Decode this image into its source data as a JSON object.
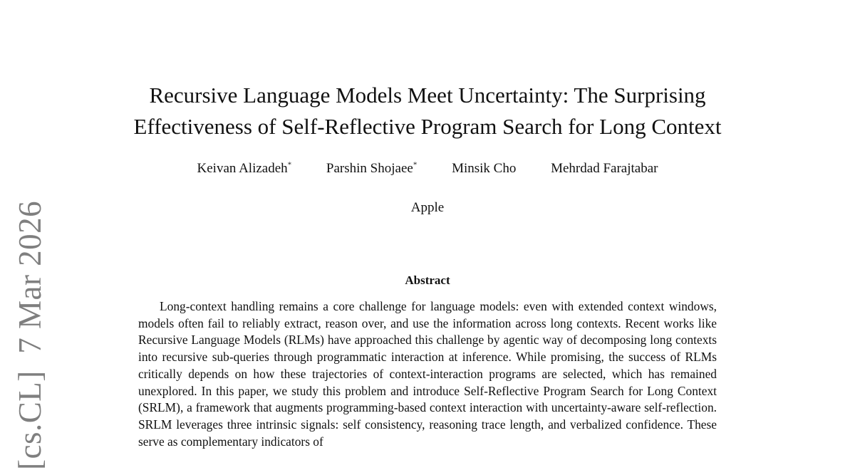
{
  "paper": {
    "title_lines": [
      "Recursive Language Models Meet Uncertainty: The Surprising",
      "Effectiveness of Self-Reflective Program Search for Long Context"
    ],
    "authors": [
      {
        "name": "Keivan Alizadeh",
        "mark": "*"
      },
      {
        "name": "Parshin Shojaee",
        "mark": "*"
      },
      {
        "name": "Minsik Cho",
        "mark": ""
      },
      {
        "name": "Mehrdad Farajtabar",
        "mark": ""
      }
    ],
    "affiliation": "Apple",
    "abstract_heading": "Abstract",
    "abstract_text": "Long-context handling remains a core challenge for language models: even with extended context windows, models often fail to reliably extract, reason over, and use the information across long contexts. Recent works like Recursive Language Models (RLMs) have approached this challenge by agentic way of decomposing long contexts into recursive sub-queries through programmatic interaction at inference. While promising, the success of RLMs critically depends on how these trajectories of context-interaction programs are selected, which has remained unexplored. In this paper, we study this problem and introduce Self-Reflective Program Search for Long Context (SRLM), a framework that augments programming-based context interaction with uncertainty-aware self-reflection. SRLM leverages three intrinsic signals: self consistency, reasoning trace length, and verbalized confidence. These serve as complementary indicators of"
  },
  "arxiv_stamp": "[cs.CL]  7 Mar 2026"
}
